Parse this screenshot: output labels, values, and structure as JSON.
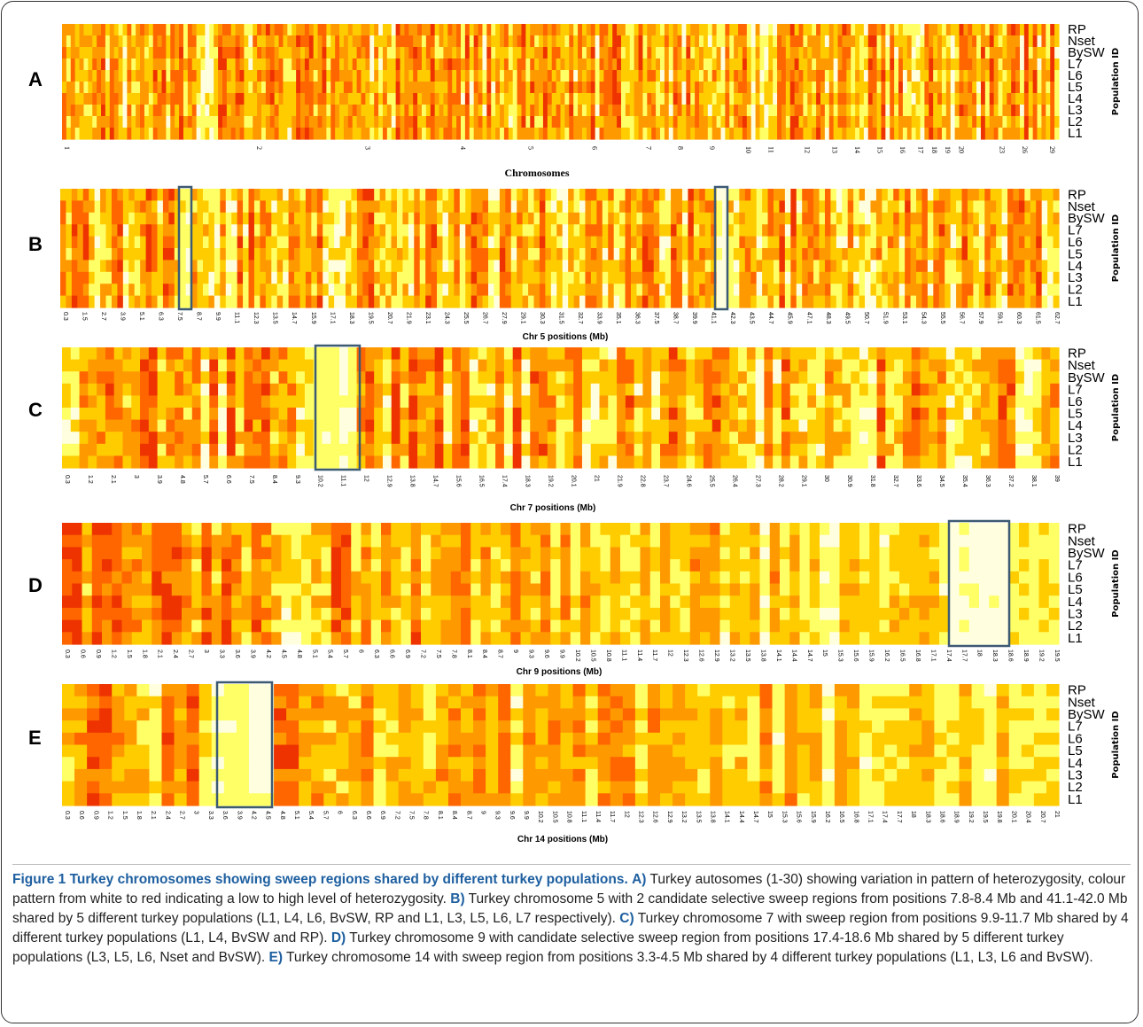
{
  "figure": {
    "rows": [
      "RP",
      "Nset",
      "BySW",
      "L7",
      "L6",
      "L5",
      "L4",
      "L3",
      "L2",
      "L1"
    ],
    "row_axis_title": "Population ID",
    "panels": [
      {
        "id": "A",
        "xlabel": "Chromosomes",
        "ticks": [
          "1",
          "2",
          "3",
          "4",
          "5",
          "6",
          "7",
          "8",
          "9",
          "10",
          "11",
          "12",
          "13",
          "14",
          "15",
          "16",
          "17",
          "18",
          "19",
          "20",
          "23",
          "26",
          "29"
        ]
      },
      {
        "id": "B",
        "xlabel": "Chr 5 positions (Mb)",
        "ticks": [
          "0.3",
          "1.5",
          "2.7",
          "3.9",
          "5.1",
          "6.3",
          "7.5",
          "8.7",
          "9.9",
          "11.1",
          "12.3",
          "13.5",
          "14.7",
          "15.9",
          "17.1",
          "18.3",
          "19.5",
          "20.7",
          "21.9",
          "23.1",
          "24.3",
          "25.5",
          "26.7",
          "27.9",
          "29.1",
          "30.3",
          "31.5",
          "32.7",
          "33.9",
          "35.1",
          "36.3",
          "37.5",
          "38.7",
          "39.9",
          "41.1",
          "42.3",
          "43.5",
          "44.7",
          "45.9",
          "47.1",
          "48.3",
          "49.5",
          "50.7",
          "51.9",
          "53.1",
          "54.3",
          "55.5",
          "56.7",
          "57.9",
          "59.1",
          "60.3",
          "61.5",
          "62.7"
        ]
      },
      {
        "id": "C",
        "xlabel": "Chr 7 positions (Mb)",
        "ticks": [
          "0.3",
          "1.2",
          "2.1",
          "3",
          "3.9",
          "4.8",
          "5.7",
          "6.6",
          "7.5",
          "8.4",
          "9.3",
          "10.2",
          "11.1",
          "12",
          "12.9",
          "13.8",
          "14.7",
          "15.6",
          "16.5",
          "17.4",
          "18.3",
          "19.2",
          "20.1",
          "21",
          "21.9",
          "22.8",
          "23.7",
          "24.6",
          "25.5",
          "26.4",
          "27.3",
          "28.2",
          "29.1",
          "30",
          "30.9",
          "31.8",
          "32.7",
          "33.6",
          "34.5",
          "35.4",
          "36.3",
          "37.2",
          "38.1",
          "39"
        ]
      },
      {
        "id": "D",
        "xlabel": "Chr 9 positions (Mb)",
        "ticks": [
          "0.3",
          "0.6",
          "0.9",
          "1.2",
          "1.5",
          "1.8",
          "2.1",
          "2.4",
          "2.7",
          "3",
          "3.3",
          "3.6",
          "3.9",
          "4.2",
          "4.5",
          "4.8",
          "5.1",
          "5.4",
          "5.7",
          "6",
          "6.3",
          "6.6",
          "6.9",
          "7.2",
          "7.5",
          "7.8",
          "8.1",
          "8.4",
          "8.7",
          "9",
          "9.3",
          "9.6",
          "9.9",
          "10.2",
          "10.5",
          "10.8",
          "11.1",
          "11.4",
          "11.7",
          "12",
          "12.3",
          "12.6",
          "12.9",
          "13.2",
          "13.5",
          "13.8",
          "14.1",
          "14.4",
          "14.7",
          "15",
          "15.3",
          "15.6",
          "15.9",
          "16.2",
          "16.5",
          "16.8",
          "17.1",
          "17.4",
          "17.7",
          "18",
          "18.3",
          "18.6",
          "18.9",
          "19.2",
          "19.5"
        ]
      },
      {
        "id": "E",
        "xlabel": "Chr 14 positions (Mb)",
        "ticks": [
          "0.3",
          "0.6",
          "0.9",
          "1.2",
          "1.5",
          "1.8",
          "2.1",
          "2.4",
          "2.7",
          "3",
          "3.3",
          "3.6",
          "3.9",
          "4.2",
          "4.5",
          "4.8",
          "5.1",
          "5.4",
          "5.7",
          "6",
          "6.3",
          "6.6",
          "6.9",
          "7.2",
          "7.5",
          "7.8",
          "8.1",
          "8.4",
          "8.7",
          "9",
          "9.3",
          "9.6",
          "9.9",
          "10.2",
          "10.5",
          "10.8",
          "11.1",
          "11.4",
          "11.7",
          "12",
          "12.3",
          "12.6",
          "12.9",
          "13.2",
          "13.5",
          "13.8",
          "14.1",
          "14.4",
          "14.7",
          "15",
          "15.3",
          "15.6",
          "15.9",
          "16.2",
          "16.5",
          "16.8",
          "17.1",
          "17.4",
          "17.7",
          "18",
          "18.3",
          "18.6",
          "18.9",
          "19.2",
          "19.5",
          "19.8",
          "20.1",
          "20.4",
          "20.7",
          "21"
        ]
      }
    ],
    "colors": {
      "scale": [
        "#ffffe0",
        "#ffff66",
        "#ffcc00",
        "#ff9900",
        "#ff6600",
        "#ee3300"
      ],
      "box": "#3d5a73"
    }
  },
  "caption": {
    "title": "Figure 1 Turkey chromosomes showing sweep regions shared by different turkey populations.",
    "parts": [
      {
        "label": "A)",
        "text": "Turkey autosomes (1-30) showing variation in pattern of heterozygosity, colour pattern from white to red indicating a low to high level of heterozygosity."
      },
      {
        "label": "B)",
        "text": "Turkey chromosome 5 with 2 candidate selective sweep regions from positions 7.8-8.4 Mb and 41.1-42.0 Mb shared by 5 different turkey populations (L1, L4, L6, BvSW, RP and L1, L3, L5, L6, L7 respectively)."
      },
      {
        "label": "C)",
        "text": "Turkey chromosome 7 with sweep region from positions 9.9-11.7 Mb shared by 4 different turkey populations (L1, L4, BvSW and RP)."
      },
      {
        "label": "D)",
        "text": "Turkey chromosome 9 with candidate selective sweep region from positions 17.4-18.6 Mb shared by 5 different turkey populations (L3, L5, L6, Nset and BvSW)."
      },
      {
        "label": "E)",
        "text": "Turkey chromosome 14 with sweep region from positions 3.3-4.5 Mb shared by 4 different turkey populations (L1, L3, L6 and BvSW)."
      }
    ]
  }
}
